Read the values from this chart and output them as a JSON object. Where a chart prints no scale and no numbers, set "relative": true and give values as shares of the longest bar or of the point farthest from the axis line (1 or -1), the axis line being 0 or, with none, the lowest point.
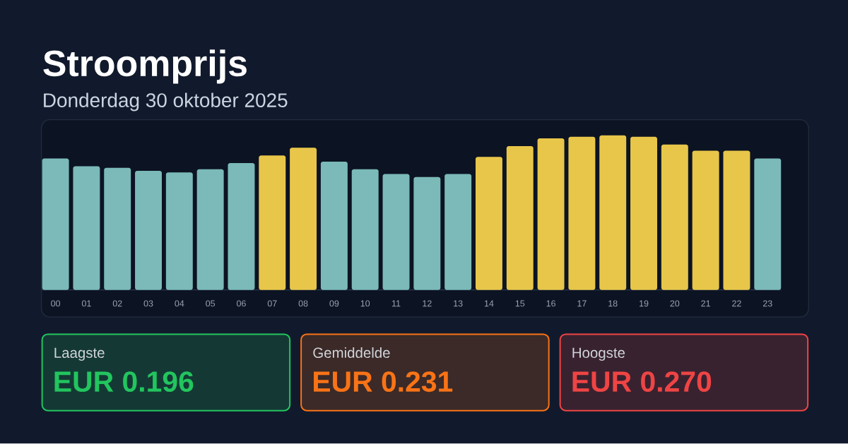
{
  "chart_data": [
    {
      "type": "bar",
      "title": "Stroomprijs",
      "subtitle": "Donderdag 30 oktober 2025",
      "categories": [
        "00",
        "01",
        "02",
        "03",
        "04",
        "05",
        "06",
        "07",
        "08",
        "09",
        "10",
        "11",
        "12",
        "13",
        "14",
        "15",
        "16",
        "17",
        "18",
        "19",
        "20",
        "21",
        "22",
        "23"
      ],
      "values": [
        0.85,
        0.8,
        0.79,
        0.77,
        0.76,
        0.78,
        0.82,
        0.87,
        0.92,
        0.83,
        0.78,
        0.75,
        0.73,
        0.75,
        0.86,
        0.93,
        0.98,
        0.99,
        1.0,
        0.99,
        0.94,
        0.9,
        0.9,
        0.85
      ],
      "colors": [
        "#7bbab9",
        "#7bbab9",
        "#7bbab9",
        "#7bbab9",
        "#7bbab9",
        "#7bbab9",
        "#7bbab9",
        "#e8c64a",
        "#e8c64a",
        "#7bbab9",
        "#7bbab9",
        "#7bbab9",
        "#7bbab9",
        "#7bbab9",
        "#e8c64a",
        "#e8c64a",
        "#e8c64a",
        "#e8c64a",
        "#e8c64a",
        "#e8c64a",
        "#e8c64a",
        "#e8c64a",
        "#e8c64a",
        "#7bbab9"
      ],
      "relative": true
    },
    {
      "type": "other",
      "annotations": [
        "Laagste",
        "EUR 0.196",
        "Gemiddelde",
        "EUR 0.231",
        "Hoogste",
        "EUR 0.270"
      ],
      "colors": [
        "#22c55e",
        "#f97316",
        "#ef4444"
      ]
    }
  ]
}
